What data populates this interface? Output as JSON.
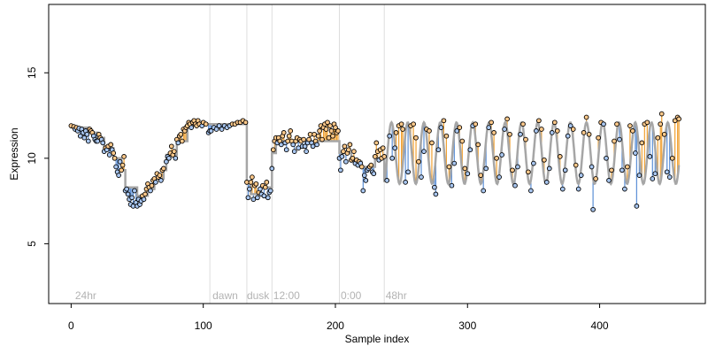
{
  "chart_data": {
    "type": "scatter",
    "title": "",
    "xlabel": "Sample index",
    "ylabel": "Expression",
    "xlim": [
      -17,
      480
    ],
    "ylim": [
      1.5,
      19
    ],
    "x_ticks": [
      0,
      100,
      200,
      300,
      400
    ],
    "y_ticks": [
      5,
      10,
      15
    ],
    "grid": false,
    "legend": "none",
    "colors": {
      "frame": "#000000",
      "fit_line": "#a6a6a6",
      "divider": "#dddddd",
      "region_label": "#b3b3b3",
      "residual_up": "#f0a030",
      "residual_down": "#5b8fd6",
      "point_fill_up": "#ffc98a",
      "point_fill_down": "#a8c6f0"
    },
    "dividers": [
      105,
      133,
      152,
      203,
      237
    ],
    "region_labels": [
      {
        "x": 3,
        "text": "24hr"
      },
      {
        "x": 107,
        "text": "dawn"
      },
      {
        "x": 133,
        "text": "dusk"
      },
      {
        "x": 153,
        "text": "12:00"
      },
      {
        "x": 204,
        "text": "0:00"
      },
      {
        "x": 238,
        "text": "48hr"
      }
    ],
    "fit_segments": [
      {
        "x0": 0,
        "x1": 13,
        "y": 11.8
      },
      {
        "x0": 13,
        "x1": 20,
        "y": 11.5
      },
      {
        "x0": 20,
        "x1": 25,
        "y": 11.2
      },
      {
        "x0": 25,
        "x1": 32,
        "y": 10.6
      },
      {
        "x0": 32,
        "x1": 38,
        "y": 10.0
      },
      {
        "x0": 38,
        "x1": 41,
        "y": 9.3
      },
      {
        "x0": 41,
        "x1": 50,
        "y": 8.3
      },
      {
        "x0": 50,
        "x1": 58,
        "y": 7.8
      },
      {
        "x0": 58,
        "x1": 63,
        "y": 8.2
      },
      {
        "x0": 63,
        "x1": 70,
        "y": 8.8
      },
      {
        "x0": 70,
        "x1": 72,
        "y": 9.3
      },
      {
        "x0": 72,
        "x1": 80,
        "y": 10.2
      },
      {
        "x0": 80,
        "x1": 88,
        "y": 11.0
      },
      {
        "x0": 88,
        "x1": 96,
        "y": 11.9
      },
      {
        "x0": 96,
        "x1": 133,
        "y": 12.0
      },
      {
        "x0": 133,
        "x1": 136,
        "y": 8.5
      },
      {
        "x0": 136,
        "x1": 143,
        "y": 7.9
      },
      {
        "x0": 143,
        "x1": 152,
        "y": 8.3
      },
      {
        "x0": 152,
        "x1": 155,
        "y": 10.3
      },
      {
        "x0": 155,
        "x1": 175,
        "y": 11.0
      },
      {
        "x0": 175,
        "x1": 187,
        "y": 11.0
      },
      {
        "x0": 187,
        "x1": 203,
        "y": 11.0
      },
      {
        "x0": 203,
        "x1": 212,
        "y": 10.3
      },
      {
        "x0": 212,
        "x1": 220,
        "y": 9.8
      },
      {
        "x0": 220,
        "x1": 230,
        "y": 9.5
      },
      {
        "x0": 230,
        "x1": 237,
        "y": 10.0
      }
    ],
    "fit_sine": {
      "x_start": 237,
      "x_end": 460,
      "mean": 10.3,
      "amplitude": 1.8,
      "period": 12.3,
      "phase": -2.9
    },
    "points": [
      [
        0,
        11.9
      ],
      [
        2,
        11.85
      ],
      [
        3,
        11.7
      ],
      [
        4,
        11.8
      ],
      [
        5,
        11.6
      ],
      [
        6,
        11.75
      ],
      [
        7,
        11.3
      ],
      [
        8,
        11.7
      ],
      [
        9,
        11.5
      ],
      [
        10,
        11.2
      ],
      [
        11,
        11.6
      ],
      [
        12,
        11.4
      ],
      [
        13,
        11.0
      ],
      [
        14,
        11.7
      ],
      [
        15,
        11.6
      ],
      [
        16,
        11.5
      ],
      [
        17,
        11.3
      ],
      [
        18,
        11.1
      ],
      [
        19,
        11.0
      ],
      [
        20,
        11.0
      ],
      [
        21,
        11.4
      ],
      [
        22,
        11.2
      ],
      [
        23,
        11.1
      ],
      [
        24,
        10.9
      ],
      [
        25,
        10.4
      ],
      [
        26,
        10.6
      ],
      [
        27,
        10.5
      ],
      [
        28,
        10.7
      ],
      [
        29,
        10.2
      ],
      [
        30,
        10.8
      ],
      [
        31,
        10.5
      ],
      [
        32,
        10.3
      ],
      [
        33,
        10.0
      ],
      [
        34,
        9.5
      ],
      [
        35,
        9.2
      ],
      [
        36,
        9.0
      ],
      [
        37,
        9.8
      ],
      [
        38,
        9.3
      ],
      [
        39,
        9.6
      ],
      [
        40,
        10.1
      ],
      [
        41,
        8.1
      ],
      [
        42,
        8.2
      ],
      [
        43,
        7.9
      ],
      [
        44,
        7.6
      ],
      [
        45,
        7.3
      ],
      [
        46,
        7.7
      ],
      [
        47,
        7.2
      ],
      [
        48,
        8.1
      ],
      [
        49,
        7.4
      ],
      [
        50,
        7.2
      ],
      [
        51,
        7.6
      ],
      [
        52,
        7.3
      ],
      [
        53,
        7.5
      ],
      [
        54,
        7.8
      ],
      [
        55,
        7.6
      ],
      [
        56,
        7.9
      ],
      [
        57,
        8.2
      ],
      [
        58,
        8.5
      ],
      [
        59,
        8.3
      ],
      [
        60,
        8.1
      ],
      [
        61,
        8.4
      ],
      [
        62,
        8.7
      ],
      [
        63,
        8.8
      ],
      [
        64,
        8.6
      ],
      [
        65,
        9.1
      ],
      [
        66,
        8.9
      ],
      [
        67,
        9.0
      ],
      [
        68,
        8.7
      ],
      [
        69,
        9.3
      ],
      [
        70,
        9.4
      ],
      [
        72,
        9.8
      ],
      [
        73,
        10.1
      ],
      [
        74,
        10.0
      ],
      [
        75,
        10.3
      ],
      [
        76,
        10.7
      ],
      [
        77,
        10.2
      ],
      [
        78,
        10.4
      ],
      [
        79,
        10.0
      ],
      [
        80,
        11.1
      ],
      [
        81,
        10.9
      ],
      [
        82,
        11.3
      ],
      [
        83,
        11.4
      ],
      [
        84,
        11.0
      ],
      [
        85,
        11.7
      ],
      [
        86,
        11.6
      ],
      [
        87,
        11.8
      ],
      [
        88,
        11.9
      ],
      [
        89,
        12.1
      ],
      [
        90,
        12.0
      ],
      [
        91,
        11.8
      ],
      [
        92,
        12.1
      ],
      [
        93,
        12.2
      ],
      [
        94,
        12.0
      ],
      [
        95,
        11.9
      ],
      [
        96,
        12.2
      ],
      [
        97,
        12.0
      ],
      [
        99,
        11.9
      ],
      [
        100,
        12.1
      ],
      [
        102,
        12.0
      ],
      [
        104,
        11.5
      ],
      [
        105,
        11.6
      ],
      [
        106,
        11.6
      ],
      [
        108,
        11.8
      ],
      [
        110,
        11.7
      ],
      [
        112,
        11.9
      ],
      [
        114,
        11.7
      ],
      [
        116,
        11.9
      ],
      [
        118,
        11.8
      ],
      [
        120,
        11.9
      ],
      [
        122,
        12.0
      ],
      [
        124,
        12.0
      ],
      [
        126,
        12.1
      ],
      [
        128,
        12.1
      ],
      [
        130,
        12.2
      ],
      [
        132,
        12.1
      ],
      [
        133,
        8.6
      ],
      [
        134,
        7.7
      ],
      [
        135,
        8.2
      ],
      [
        136,
        8.6
      ],
      [
        137,
        8.9
      ],
      [
        138,
        7.6
      ],
      [
        139,
        8.4
      ],
      [
        140,
        8.5
      ],
      [
        141,
        7.7
      ],
      [
        142,
        8.0
      ],
      [
        143,
        8.2
      ],
      [
        144,
        7.9
      ],
      [
        145,
        8.4
      ],
      [
        146,
        7.8
      ],
      [
        147,
        8.3
      ],
      [
        148,
        8.6
      ],
      [
        149,
        7.7
      ],
      [
        150,
        8.0
      ],
      [
        151,
        8.1
      ],
      [
        152,
        9.4
      ],
      [
        153,
        10.5
      ],
      [
        154,
        11.0
      ],
      [
        155,
        11.2
      ],
      [
        156,
        10.9
      ],
      [
        157,
        11.2
      ],
      [
        158,
        11.0
      ],
      [
        159,
        10.8
      ],
      [
        160,
        11.3
      ],
      [
        161,
        11.5
      ],
      [
        162,
        10.9
      ],
      [
        163,
        10.5
      ],
      [
        164,
        11.0
      ],
      [
        165,
        11.3
      ],
      [
        166,
        11.6
      ],
      [
        167,
        11.0
      ],
      [
        168,
        10.8
      ],
      [
        169,
        10.4
      ],
      [
        170,
        11.0
      ],
      [
        171,
        11.2
      ],
      [
        172,
        10.6
      ],
      [
        173,
        11.1
      ],
      [
        174,
        11.0
      ],
      [
        175,
        10.7
      ],
      [
        176,
        11.1
      ],
      [
        177,
        10.7
      ],
      [
        178,
        10.4
      ],
      [
        179,
        10.9
      ],
      [
        180,
        11.1
      ],
      [
        181,
        11.4
      ],
      [
        182,
        10.9
      ],
      [
        183,
        10.7
      ],
      [
        184,
        11.4
      ],
      [
        185,
        11.0
      ],
      [
        186,
        10.8
      ],
      [
        187,
        11.3
      ],
      [
        188,
        11.6
      ],
      [
        189,
        11.9
      ],
      [
        190,
        11.1
      ],
      [
        191,
        11.8
      ],
      [
        192,
        12.0
      ],
      [
        193,
        11.7
      ],
      [
        194,
        12.1
      ],
      [
        195,
        11.2
      ],
      [
        196,
        11.9
      ],
      [
        197,
        11.6
      ],
      [
        198,
        11.3
      ],
      [
        199,
        12.0
      ],
      [
        200,
        11.8
      ],
      [
        201,
        11.5
      ],
      [
        202,
        11.6
      ],
      [
        203,
        10.0
      ],
      [
        204,
        9.3
      ],
      [
        205,
        10.1
      ],
      [
        206,
        10.4
      ],
      [
        207,
        10.7
      ],
      [
        208,
        9.8
      ],
      [
        209,
        10.3
      ],
      [
        210,
        10.5
      ],
      [
        211,
        10.8
      ],
      [
        212,
        9.9
      ],
      [
        213,
        10.0
      ],
      [
        214,
        10.4
      ],
      [
        215,
        9.7
      ],
      [
        216,
        9.9
      ],
      [
        217,
        9.6
      ],
      [
        218,
        9.8
      ],
      [
        219,
        9.7
      ],
      [
        220,
        9.5
      ],
      [
        221,
        8.1
      ],
      [
        222,
        9.0
      ],
      [
        223,
        8.7
      ],
      [
        224,
        9.3
      ],
      [
        225,
        9.4
      ],
      [
        226,
        9.5
      ],
      [
        227,
        9.6
      ],
      [
        228,
        9.2
      ],
      [
        229,
        9.1
      ],
      [
        230,
        10.1
      ],
      [
        231,
        10.9
      ],
      [
        232,
        10.4
      ],
      [
        233,
        9.9
      ],
      [
        234,
        10.5
      ],
      [
        235,
        10.0
      ],
      [
        236,
        10.6
      ],
      [
        237,
        10.1
      ],
      [
        239,
        8.7
      ],
      [
        241,
        11.3
      ],
      [
        243,
        10.0
      ],
      [
        245,
        10.6
      ],
      [
        246,
        11.5
      ],
      [
        248,
        11.9
      ],
      [
        250,
        12.0
      ],
      [
        251,
        11.7
      ],
      [
        253,
        8.6
      ],
      [
        255,
        9.2
      ],
      [
        257,
        11.9
      ],
      [
        259,
        12.0
      ],
      [
        261,
        11.2
      ],
      [
        263,
        9.8
      ],
      [
        265,
        8.9
      ],
      [
        267,
        10.4
      ],
      [
        269,
        11.7
      ],
      [
        271,
        11.6
      ],
      [
        273,
        10.9
      ],
      [
        275,
        8.3
      ],
      [
        276,
        7.9
      ],
      [
        278,
        10.5
      ],
      [
        280,
        11.8
      ],
      [
        282,
        12.2
      ],
      [
        284,
        11.3
      ],
      [
        286,
        9.5
      ],
      [
        288,
        8.4
      ],
      [
        290,
        9.7
      ],
      [
        292,
        11.6
      ],
      [
        294,
        11.8
      ],
      [
        296,
        11.0
      ],
      [
        298,
        9.4
      ],
      [
        300,
        9.1
      ],
      [
        302,
        10.5
      ],
      [
        304,
        11.9
      ],
      [
        306,
        12.0
      ],
      [
        308,
        10.8
      ],
      [
        310,
        9.0
      ],
      [
        312,
        8.1
      ],
      [
        314,
        9.4
      ],
      [
        316,
        11.8
      ],
      [
        318,
        12.1
      ],
      [
        320,
        11.5
      ],
      [
        322,
        10.0
      ],
      [
        324,
        8.9
      ],
      [
        326,
        10.2
      ],
      [
        328,
        11.7
      ],
      [
        330,
        12.3
      ],
      [
        332,
        11.4
      ],
      [
        334,
        9.3
      ],
      [
        336,
        8.4
      ],
      [
        338,
        9.5
      ],
      [
        340,
        11.4
      ],
      [
        342,
        12.0
      ],
      [
        344,
        11.1
      ],
      [
        346,
        9.2
      ],
      [
        348,
        8.1
      ],
      [
        350,
        9.7
      ],
      [
        352,
        11.6
      ],
      [
        354,
        12.2
      ],
      [
        356,
        11.7
      ],
      [
        358,
        9.9
      ],
      [
        360,
        8.6
      ],
      [
        362,
        9.4
      ],
      [
        364,
        11.5
      ],
      [
        366,
        12.1
      ],
      [
        368,
        11.6
      ],
      [
        370,
        10.1
      ],
      [
        372,
        8.2
      ],
      [
        374,
        9.3
      ],
      [
        376,
        11.3
      ],
      [
        378,
        11.9
      ],
      [
        380,
        11.7
      ],
      [
        382,
        9.6
      ],
      [
        384,
        8.2
      ],
      [
        386,
        9.0
      ],
      [
        388,
        11.5
      ],
      [
        390,
        12.4
      ],
      [
        392,
        11.4
      ],
      [
        394,
        9.5
      ],
      [
        395,
        7.0
      ],
      [
        397,
        8.8
      ],
      [
        399,
        11.2
      ],
      [
        401,
        12.1
      ],
      [
        403,
        12.0
      ],
      [
        405,
        10.0
      ],
      [
        407,
        8.7
      ],
      [
        409,
        9.3
      ],
      [
        411,
        11.0
      ],
      [
        413,
        12.0
      ],
      [
        415,
        11.1
      ],
      [
        417,
        9.3
      ],
      [
        419,
        8.2
      ],
      [
        421,
        9.5
      ],
      [
        423,
        11.9
      ],
      [
        425,
        11.6
      ],
      [
        427,
        10.3
      ],
      [
        428,
        7.2
      ],
      [
        430,
        9.0
      ],
      [
        432,
        10.9
      ],
      [
        434,
        12.0
      ],
      [
        436,
        12.1
      ],
      [
        438,
        10.1
      ],
      [
        440,
        8.8
      ],
      [
        442,
        9.1
      ],
      [
        444,
        11.2
      ],
      [
        446,
        12.0
      ],
      [
        447,
        12.6
      ],
      [
        449,
        11.4
      ],
      [
        451,
        9.2
      ],
      [
        453,
        8.9
      ],
      [
        455,
        10.0
      ],
      [
        457,
        12.2
      ],
      [
        459,
        12.4
      ],
      [
        460,
        12.3
      ]
    ]
  }
}
